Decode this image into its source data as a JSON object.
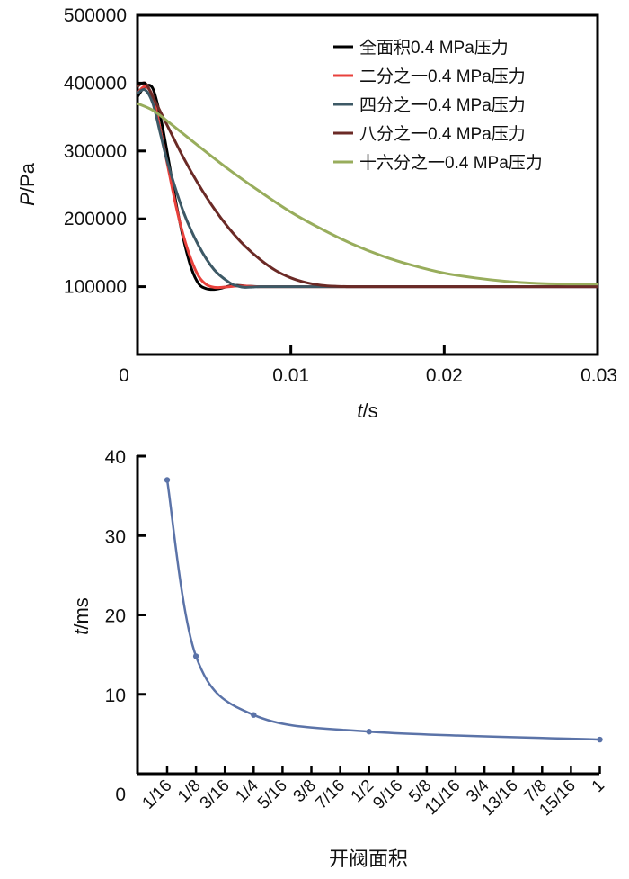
{
  "chart_data": [
    {
      "type": "line",
      "xlabel_italic": "t",
      "xlabel_unit": "/s",
      "ylabel_italic": "P",
      "ylabel_unit": "/Pa",
      "xlim": [
        0,
        0.03
      ],
      "ylim": [
        0,
        500000
      ],
      "x_ticks": [
        {
          "value": 0,
          "label": "0"
        },
        {
          "value": 0.01,
          "label": "0.01"
        },
        {
          "value": 0.02,
          "label": "0.02"
        },
        {
          "value": 0.03,
          "label": "0.03"
        }
      ],
      "y_ticks": [
        {
          "value": 100000,
          "label": "100000"
        },
        {
          "value": 200000,
          "label": "200000"
        },
        {
          "value": 300000,
          "label": "300000"
        },
        {
          "value": 400000,
          "label": "400000"
        },
        {
          "value": 500000,
          "label": "500000"
        }
      ],
      "legend_position": "top-right",
      "series": [
        {
          "name": "全面积0.4 MPa压力",
          "color": "#000000",
          "x": [
            0,
            0.0005,
            0.001,
            0.0015,
            0.002,
            0.0025,
            0.003,
            0.0035,
            0.004,
            0.0045,
            0.005,
            0.0055,
            0.006,
            0.0065,
            0.007,
            0.008,
            0.01,
            0.03
          ],
          "y": [
            380000,
            395000,
            392000,
            350000,
            290000,
            225000,
            170000,
            128000,
            104000,
            97000,
            96000,
            98000,
            101000,
            102000,
            101000,
            100000,
            100000,
            100000
          ]
        },
        {
          "name": "二分之一0.4 MPa压力",
          "color": "#e8413c",
          "x": [
            0,
            0.0005,
            0.001,
            0.0015,
            0.002,
            0.0025,
            0.003,
            0.0035,
            0.004,
            0.0045,
            0.005,
            0.0055,
            0.006,
            0.0065,
            0.007,
            0.008,
            0.01,
            0.03
          ],
          "y": [
            385000,
            395000,
            380000,
            330000,
            275000,
            220000,
            175000,
            140000,
            115000,
            103000,
            99000,
            99000,
            100000,
            101000,
            101000,
            100000,
            100000,
            100000
          ]
        },
        {
          "name": "四分之一0.4 MPa压力",
          "color": "#3d5966",
          "x": [
            0,
            0.0005,
            0.001,
            0.0015,
            0.002,
            0.003,
            0.004,
            0.005,
            0.006,
            0.0065,
            0.007,
            0.0075,
            0.008,
            0.009,
            0.01,
            0.03
          ],
          "y": [
            385000,
            390000,
            370000,
            325000,
            280000,
            210000,
            160000,
            125000,
            106000,
            101000,
            99000,
            99500,
            100000,
            100000,
            100000,
            100000
          ]
        },
        {
          "name": "八分之一0.4 MPa压力",
          "color": "#6b2a26",
          "x": [
            0,
            0.0005,
            0.001,
            0.002,
            0.003,
            0.004,
            0.005,
            0.006,
            0.007,
            0.008,
            0.009,
            0.01,
            0.011,
            0.012,
            0.013,
            0.014,
            0.015,
            0.03
          ],
          "y": [
            395000,
            400000,
            380000,
            335000,
            290000,
            250000,
            215000,
            185000,
            160000,
            140000,
            124000,
            113000,
            106000,
            102000,
            100500,
            100000,
            100000,
            100000
          ]
        },
        {
          "name": "十六分之一0.4 MPa压力",
          "color": "#98ad5c",
          "x": [
            0,
            0.001,
            0.002,
            0.003,
            0.004,
            0.006,
            0.008,
            0.01,
            0.012,
            0.014,
            0.016,
            0.018,
            0.02,
            0.022,
            0.024,
            0.026,
            0.028,
            0.03
          ],
          "y": [
            370000,
            360000,
            343000,
            325000,
            307000,
            272000,
            240000,
            210000,
            185000,
            163000,
            145000,
            131000,
            120000,
            113000,
            108000,
            105000,
            104000,
            104000
          ]
        }
      ]
    },
    {
      "type": "line",
      "xlabel": "开阀面积",
      "ylabel_italic": "t",
      "ylabel_unit": "/ms",
      "ylim": [
        0,
        40
      ],
      "y_ticks": [
        {
          "value": 0,
          "label": "0"
        },
        {
          "value": 10,
          "label": "10"
        },
        {
          "value": 20,
          "label": "20"
        },
        {
          "value": 30,
          "label": "30"
        },
        {
          "value": 40,
          "label": "40"
        }
      ],
      "categories": [
        "1/16",
        "1/8",
        "3/16",
        "1/4",
        "5/16",
        "3/8",
        "7/16",
        "1/2",
        "9/16",
        "5/8",
        "11/16",
        "3/4",
        "13/16",
        "7/8",
        "15/16",
        "1"
      ],
      "series": [
        {
          "color": "#5b73a8",
          "points": [
            {
              "x": 1,
              "y": 37.0
            },
            {
              "x": 2,
              "y": 14.8
            },
            {
              "x": 4,
              "y": 7.4
            },
            {
              "x": 8,
              "y": 5.3
            },
            {
              "x": 16,
              "y": 4.3
            }
          ]
        }
      ]
    }
  ]
}
